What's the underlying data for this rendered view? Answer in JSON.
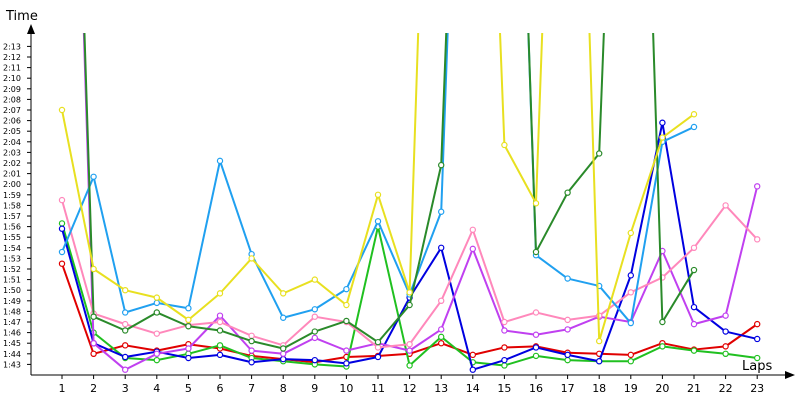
{
  "chart_data": {
    "type": "line",
    "ylabel": "Time",
    "xlabel": "Laps",
    "grid": false,
    "legend": "none",
    "x": [
      1,
      2,
      3,
      4,
      5,
      6,
      7,
      8,
      9,
      10,
      11,
      12,
      13,
      14,
      15,
      16,
      17,
      18,
      19,
      20,
      21,
      22,
      23
    ],
    "x_ticks": [
      "1",
      "2",
      "3",
      "4",
      "5",
      "6",
      "7",
      "8",
      "9",
      "10",
      "11",
      "12",
      "13",
      "14",
      "15",
      "16",
      "17",
      "18",
      "19",
      "20",
      "21",
      "22",
      "23"
    ],
    "ylim_seconds": [
      102,
      133.8
    ],
    "y_ticks": [
      "1:43",
      "1:44",
      "1:45",
      "1:46",
      "1:47",
      "1:48",
      "1:49",
      "1:50",
      "1:51",
      "1:52",
      "1:53",
      "1:54",
      "1:55",
      "1:56",
      "1:57",
      "1:58",
      "1:59",
      "2:00",
      "2:01",
      "2:02",
      "2:03",
      "2:04",
      "2:05",
      "2:06",
      "2:07",
      "2:08",
      "2:09",
      "2:10",
      "2:11",
      "2:12",
      "2:13"
    ],
    "y_tick_seconds": [
      103,
      104,
      105,
      106,
      107,
      108,
      109,
      110,
      111,
      112,
      113,
      114,
      115,
      116,
      117,
      118,
      119,
      120,
      121,
      122,
      123,
      124,
      125,
      126,
      127,
      128,
      129,
      130,
      131,
      132,
      133
    ],
    "series": [
      {
        "color": "#e00000",
        "values": [
          112.5,
          104,
          104.8,
          104.3,
          104.9,
          104.5,
          103.8,
          103.5,
          103.2,
          103.7,
          103.8,
          104,
          105,
          103.9,
          104.6,
          104.7,
          104.1,
          104,
          103.9,
          105,
          104.4,
          104.7,
          106.8
        ]
      },
      {
        "color": "#20c020",
        "values": [
          116.3,
          106,
          103.6,
          103.4,
          104,
          104.8,
          103.6,
          103.3,
          103,
          102.8,
          116,
          102.9,
          105.6,
          103.2,
          102.9,
          103.8,
          103.4,
          103.3,
          103.3,
          104.7,
          104.3,
          104,
          103.6
        ]
      },
      {
        "color": "#0000e0",
        "values": [
          115.8,
          105,
          103.7,
          104.2,
          103.6,
          103.9,
          103.2,
          103.5,
          103.4,
          103.1,
          103.7,
          109.3,
          114,
          102.5,
          103.4,
          104.6,
          103.9,
          103.3,
          111.4,
          125.8,
          108.4,
          106.1,
          105.4
        ]
      },
      {
        "color": "#c040f0",
        "values": [
          200,
          105,
          102.5,
          104,
          104.5,
          107.6,
          104.3,
          104,
          105.5,
          104.3,
          105,
          104.3,
          106.3,
          113.9,
          106.2,
          105.8,
          106.3,
          107.5,
          107,
          113.7,
          106.8,
          107.6,
          119.8
        ]
      },
      {
        "color": "#ff88bb",
        "values": [
          118.5,
          107.8,
          106.8,
          105.9,
          106.7,
          107,
          105.7,
          104.8,
          107.5,
          107,
          104.6,
          104.9,
          109,
          115.7,
          107,
          107.9,
          107.2,
          107.6,
          109.8,
          111.2,
          114,
          118,
          114.8
        ]
      },
      {
        "color": "#20a0f0",
        "values": [
          113.6,
          120.7,
          107.9,
          108.8,
          108.3,
          122.2,
          113.4,
          107.4,
          108.2,
          110.1,
          116.5,
          109.6,
          117.4,
          200,
          200,
          113.3,
          111.1,
          110.4,
          106.9,
          124,
          125.4,
          null,
          null
        ]
      },
      {
        "color": "#2a8a2a",
        "values": [
          200,
          107.5,
          106.2,
          107.9,
          106.6,
          106.2,
          105.2,
          104.5,
          106.1,
          107.1,
          105.1,
          108.6,
          121.8,
          200,
          200,
          113.6,
          119.2,
          122.9,
          200,
          107,
          111.9,
          null,
          null
        ]
      },
      {
        "color": "#e8e020",
        "values": [
          127,
          112,
          110,
          109.3,
          107.2,
          109.7,
          113,
          109.7,
          111,
          108.6,
          119,
          109.8,
          200,
          200,
          123.7,
          118.2,
          200,
          105.2,
          115.4,
          124.4,
          126.6,
          null,
          null
        ]
      }
    ]
  }
}
